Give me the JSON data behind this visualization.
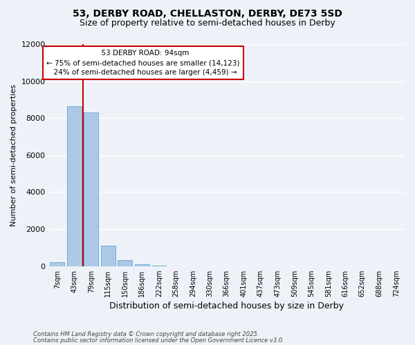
{
  "title_line1": "53, DERBY ROAD, CHELLASTON, DERBY, DE73 5SD",
  "title_line2": "Size of property relative to semi-detached houses in Derby",
  "xlabel": "Distribution of semi-detached houses by size in Derby",
  "ylabel": "Number of semi-detached properties",
  "categories": [
    "7sqm",
    "43sqm",
    "79sqm",
    "115sqm",
    "150sqm",
    "186sqm",
    "222sqm",
    "258sqm",
    "294sqm",
    "330sqm",
    "366sqm",
    "401sqm",
    "437sqm",
    "473sqm",
    "509sqm",
    "545sqm",
    "581sqm",
    "616sqm",
    "652sqm",
    "688sqm",
    "724sqm"
  ],
  "values": [
    200,
    8650,
    8300,
    1100,
    320,
    90,
    40,
    0,
    0,
    0,
    0,
    0,
    0,
    0,
    0,
    0,
    0,
    0,
    0,
    0,
    0
  ],
  "bar_color": "#adc8e6",
  "bar_edge_color": "#6aaed6",
  "property_sqm": 94,
  "property_bin_index": 2,
  "property_label": "53 DERBY ROAD: 94sqm",
  "pct_smaller": 75,
  "pct_smaller_count": 14123,
  "pct_larger": 24,
  "pct_larger_count": 4459,
  "annotation_box_color": "#cc0000",
  "vline_color": "#cc0000",
  "ylim": [
    0,
    12000
  ],
  "yticks": [
    0,
    2000,
    4000,
    6000,
    8000,
    10000,
    12000
  ],
  "background_color": "#eef2f8",
  "grid_color": "#ffffff",
  "footer_line1": "Contains HM Land Registry data © Crown copyright and database right 2025.",
  "footer_line2": "Contains public sector information licensed under the Open Government Licence v3.0."
}
